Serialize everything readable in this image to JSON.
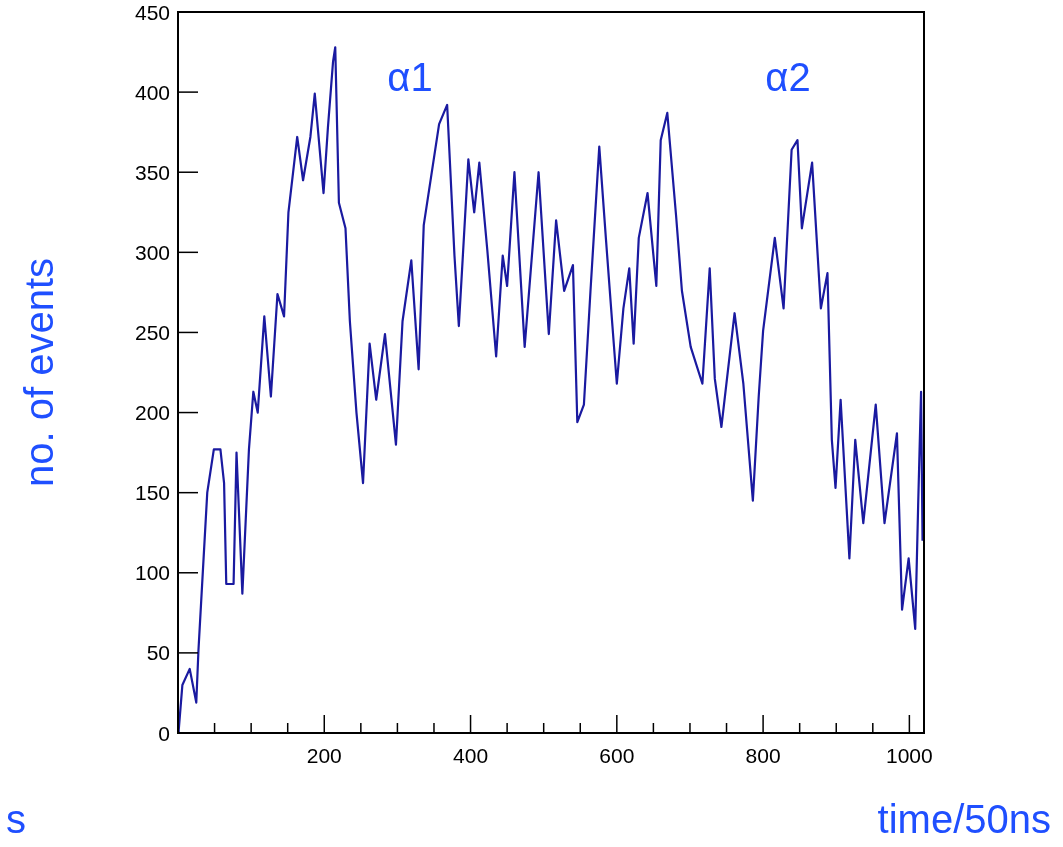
{
  "chart_data": {
    "type": "line",
    "xlabel": "time/50ns",
    "ylabel": "no. of events",
    "x": [
      0,
      1,
      6,
      16,
      25,
      28,
      34,
      40,
      49,
      58,
      63,
      66,
      76,
      80,
      88,
      97,
      103,
      109,
      118,
      127,
      136,
      145,
      151,
      163,
      171,
      181,
      187,
      199,
      205,
      212,
      215,
      220,
      229,
      235,
      244,
      253,
      262,
      271,
      283,
      298,
      307,
      319,
      329,
      336,
      357,
      368,
      378,
      384,
      397,
      405,
      412,
      423,
      435,
      444,
      450,
      460,
      474,
      493,
      507,
      517,
      528,
      540,
      546,
      555,
      564,
      576,
      585,
      594,
      600,
      609,
      617,
      623,
      630,
      642,
      654,
      660,
      669,
      681,
      689,
      701,
      717,
      727,
      734,
      743,
      761,
      773,
      786,
      794,
      800,
      816,
      828,
      839,
      847,
      853,
      867,
      879,
      888,
      894,
      899,
      906,
      918,
      926,
      937,
      954,
      966,
      983,
      990,
      999,
      1008,
      1012,
      1016,
      1018
    ],
    "series": [
      {
        "color": "#1a1aa0",
        "values": [
          0,
          2,
          30,
          40,
          19,
          52,
          101,
          150,
          177,
          177,
          156,
          93,
          93,
          175,
          87,
          177,
          213,
          200,
          260,
          210,
          274,
          260,
          325,
          372,
          345,
          372,
          399,
          337,
          378,
          419,
          428,
          331,
          315,
          257,
          200,
          156,
          243,
          208,
          249,
          180,
          257,
          295,
          227,
          317,
          380,
          392,
          298,
          254,
          358,
          325,
          356,
          301,
          235,
          298,
          279,
          350,
          241,
          350,
          249,
          320,
          276,
          292,
          194,
          205,
          276,
          366,
          309,
          254,
          218,
          265,
          290,
          243,
          309,
          337,
          279,
          370,
          387,
          323,
          276,
          241,
          218,
          290,
          221,
          191,
          262,
          218,
          145,
          210,
          251,
          309,
          265,
          364,
          370,
          315,
          356,
          265,
          287,
          183,
          153,
          208,
          109,
          183,
          131,
          205,
          131,
          187,
          77,
          109,
          65,
          142,
          213,
          120
        ]
      }
    ],
    "xlim": [
      0,
      1020
    ],
    "xticks": [
      {
        "value": 0,
        "label": null
      },
      {
        "value": 50,
        "label": null
      },
      {
        "value": 100,
        "label": null
      },
      {
        "value": 150,
        "label": null
      },
      200,
      {
        "value": 250,
        "label": null
      },
      {
        "value": 300,
        "label": null
      },
      {
        "value": 350,
        "label": null
      },
      400,
      {
        "value": 450,
        "label": null
      },
      {
        "value": 500,
        "label": null
      },
      {
        "value": 550,
        "label": null
      },
      600,
      {
        "value": 650,
        "label": null
      },
      {
        "value": 700,
        "label": null
      },
      {
        "value": 750,
        "label": null
      },
      800,
      {
        "value": 850,
        "label": null
      },
      {
        "value": 900,
        "label": null
      },
      {
        "value": 950,
        "label": null
      },
      1000
    ],
    "ylim": [
      0,
      450
    ],
    "yticks": [
      0,
      50,
      100,
      150,
      200,
      250,
      300,
      350,
      400,
      450
    ],
    "grid": false,
    "legend": false,
    "marker": "none",
    "line_style": "solid",
    "annotations": [
      "α1",
      "α2",
      "s"
    ]
  }
}
